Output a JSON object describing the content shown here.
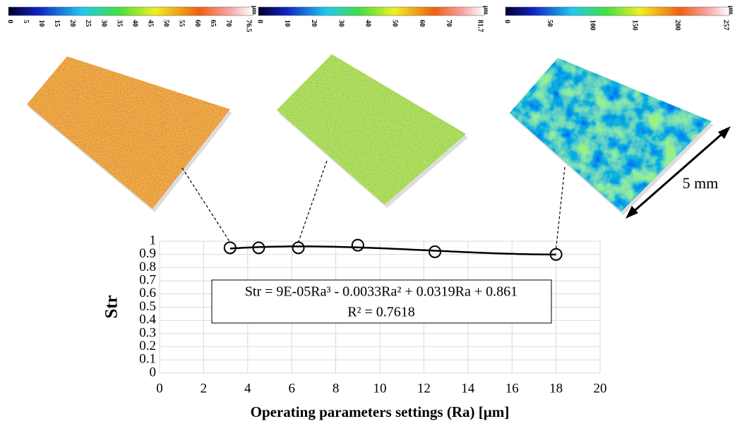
{
  "colorbars": [
    {
      "unit": "µm",
      "range": [
        0,
        76.5
      ],
      "ticks": [
        0,
        5,
        10,
        15,
        20,
        25,
        30,
        35,
        40,
        45,
        50,
        55,
        60,
        65,
        70,
        76.5
      ]
    },
    {
      "unit": "µm",
      "range": [
        0,
        81.7
      ],
      "ticks": [
        0,
        10,
        20,
        30,
        40,
        50,
        60,
        70,
        81.7
      ]
    },
    {
      "unit": "µm",
      "range": [
        0,
        257
      ],
      "ticks": [
        0,
        50,
        100,
        150,
        200,
        257
      ]
    }
  ],
  "scale_bar": "5 mm",
  "chart_data": {
    "type": "scatter",
    "x": [
      3.2,
      4.5,
      6.3,
      9,
      12.5,
      18
    ],
    "values": [
      0.95,
      0.95,
      0.95,
      0.97,
      0.92,
      0.9
    ],
    "xlim": [
      0,
      20
    ],
    "ylim": [
      0,
      1
    ],
    "xticks": [
      0,
      2,
      4,
      6,
      8,
      10,
      12,
      14,
      16,
      18,
      20
    ],
    "yticks": [
      0,
      0.1,
      0.2,
      0.3,
      0.4,
      0.5,
      0.6,
      0.7,
      0.8,
      0.9,
      1
    ],
    "grid": true,
    "xlabel": "Operating parameters settings (Ra) [µm]",
    "ylabel": "Str",
    "trendline_equation": "Str = 9E-05Ra³ - 0.0033Ra² + 0.0319Ra + 0.861",
    "trendline_r2": "R² = 0.7618"
  }
}
